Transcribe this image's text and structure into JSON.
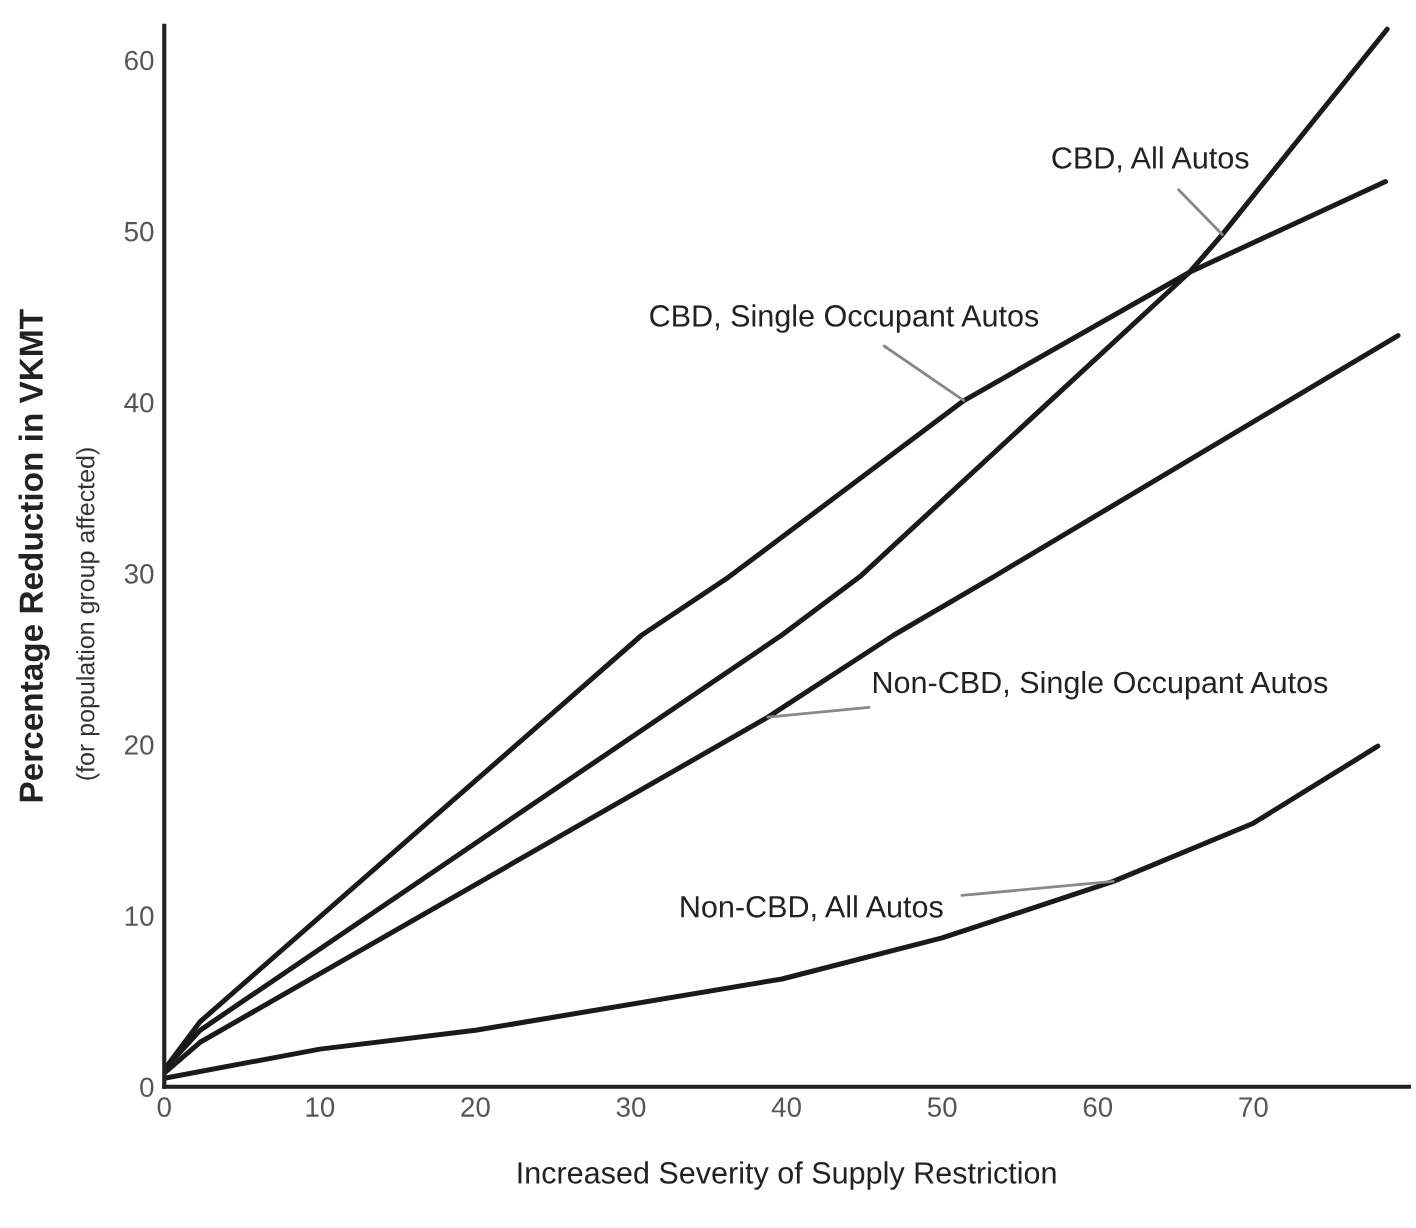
{
  "chart_data": {
    "type": "line",
    "xlabel": "Increased Severity of Supply Restriction",
    "ylabel": "Percentage Reduction in VKMT",
    "series": [
      {
        "color": "#1a1a1a",
        "x": [
          0,
          2.3,
          30.7,
          36.3,
          51.4,
          65.9,
          78.5
        ],
        "values": [
          1,
          3.8,
          26.4,
          29.8,
          40.1,
          47.6,
          52.9
        ]
      },
      {
        "color": "#1a1a1a",
        "x": [
          0,
          2.3,
          39.7,
          44.7,
          65.9,
          68,
          78.6
        ],
        "values": [
          1,
          3.3,
          26.4,
          29.8,
          47.6,
          49.8,
          61.8
        ]
      },
      {
        "color": "#1a1a1a",
        "x": [
          0,
          2.3,
          38.8,
          46.9,
          53.3,
          79.3
        ],
        "values": [
          0.8,
          2.6,
          21.6,
          26.4,
          29.8,
          43.9
        ]
      },
      {
        "color": "#1a1a1a",
        "x": [
          0,
          10,
          20,
          39.7,
          50,
          61,
          70,
          78
        ],
        "values": [
          0.5,
          2.2,
          3.3,
          6.3,
          8.7,
          12,
          15.4,
          19.9
        ]
      }
    ],
    "annotations": [
      {
        "text": "CBD, All Autos",
        "x": 68,
        "y": 49.8
      },
      {
        "text": "CBD, Single Occupant Autos",
        "x": 51.4,
        "y": 40.1
      },
      {
        "text": "Non-CBD, Single Occupant Autos",
        "x": 38.8,
        "y": 21.6
      },
      {
        "text": "Non-CBD, All Autos",
        "x": 61,
        "y": 12
      },
      "(for population group affected)"
    ],
    "xlim": [
      0,
      80
    ],
    "ylim": [
      0,
      62
    ],
    "xticks": [
      0,
      10,
      20,
      30,
      40,
      50,
      60,
      70
    ],
    "yticks": [
      0,
      10,
      20,
      30,
      40,
      50,
      60
    ],
    "grid": false,
    "legend": false,
    "marker": "none",
    "line_style": "solid"
  }
}
